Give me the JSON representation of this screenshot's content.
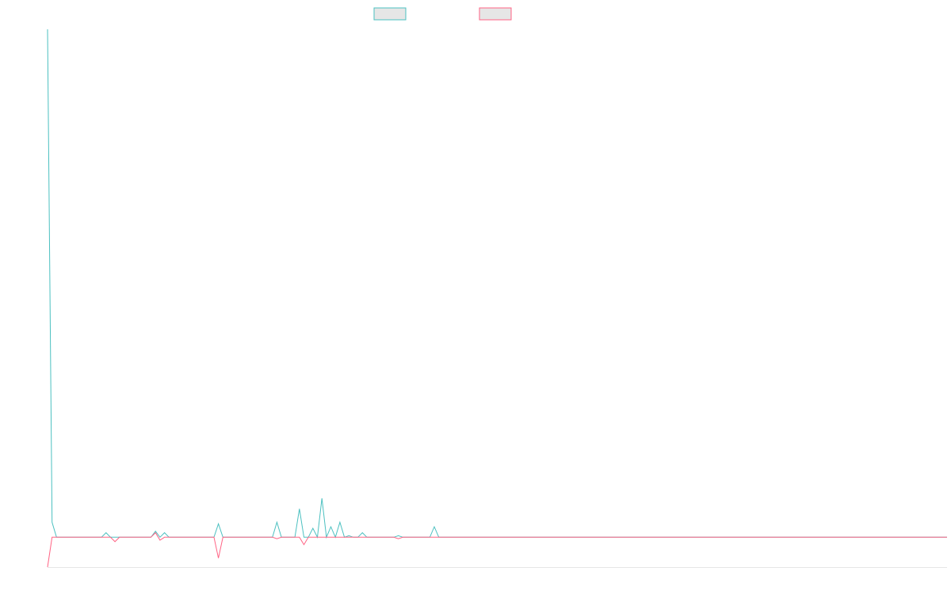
{
  "chart_data": {
    "type": "line",
    "title": "",
    "xlabel": "",
    "ylabel": "",
    "grid": false,
    "legend_position": "top-center",
    "colors": {
      "series_a": "#4bc0c0",
      "series_b": "#ff6384",
      "legend_fill": "#e6e6e6",
      "axis": "#e6e6e6"
    },
    "ylim": [
      -10,
      170
    ],
    "series": [
      {
        "name": "",
        "color": "#4bc0c0",
        "points": [
          [
            0,
            170
          ],
          [
            1,
            5
          ],
          [
            2,
            0
          ],
          [
            12,
            0
          ],
          [
            13,
            1.5
          ],
          [
            14,
            0
          ],
          [
            23,
            0
          ],
          [
            24,
            2
          ],
          [
            25,
            0
          ],
          [
            26,
            1.5
          ],
          [
            27,
            0
          ],
          [
            37,
            0
          ],
          [
            38,
            4.5
          ],
          [
            39,
            0
          ],
          [
            50,
            0
          ],
          [
            51,
            5
          ],
          [
            52,
            0
          ],
          [
            55,
            0
          ],
          [
            56,
            9.5
          ],
          [
            57,
            0
          ],
          [
            58,
            0
          ],
          [
            59,
            3
          ],
          [
            60,
            0
          ],
          [
            61,
            13
          ],
          [
            62,
            0
          ],
          [
            63,
            3.5
          ],
          [
            64,
            0
          ],
          [
            65,
            5
          ],
          [
            66,
            0
          ],
          [
            67,
            0.5
          ],
          [
            68,
            0
          ],
          [
            69,
            0
          ],
          [
            70,
            1.5
          ],
          [
            71,
            0
          ],
          [
            77,
            0
          ],
          [
            78,
            0.5
          ],
          [
            79,
            0
          ],
          [
            85,
            0
          ],
          [
            86,
            3.5
          ],
          [
            87,
            0
          ],
          [
            200,
            0
          ]
        ]
      },
      {
        "name": "",
        "color": "#ff6384",
        "points": [
          [
            0,
            -10
          ],
          [
            1,
            0
          ],
          [
            14,
            0
          ],
          [
            15,
            -1.5
          ],
          [
            16,
            0
          ],
          [
            23,
            0
          ],
          [
            24,
            1.5
          ],
          [
            25,
            -1
          ],
          [
            26,
            0
          ],
          [
            37,
            0
          ],
          [
            38,
            -7
          ],
          [
            39,
            0
          ],
          [
            50,
            0
          ],
          [
            51,
            -0.5
          ],
          [
            52,
            0
          ],
          [
            56,
            0
          ],
          [
            57,
            -2.5
          ],
          [
            58,
            0
          ],
          [
            77,
            0
          ],
          [
            78,
            -0.5
          ],
          [
            79,
            0
          ],
          [
            200,
            0
          ]
        ]
      }
    ]
  }
}
